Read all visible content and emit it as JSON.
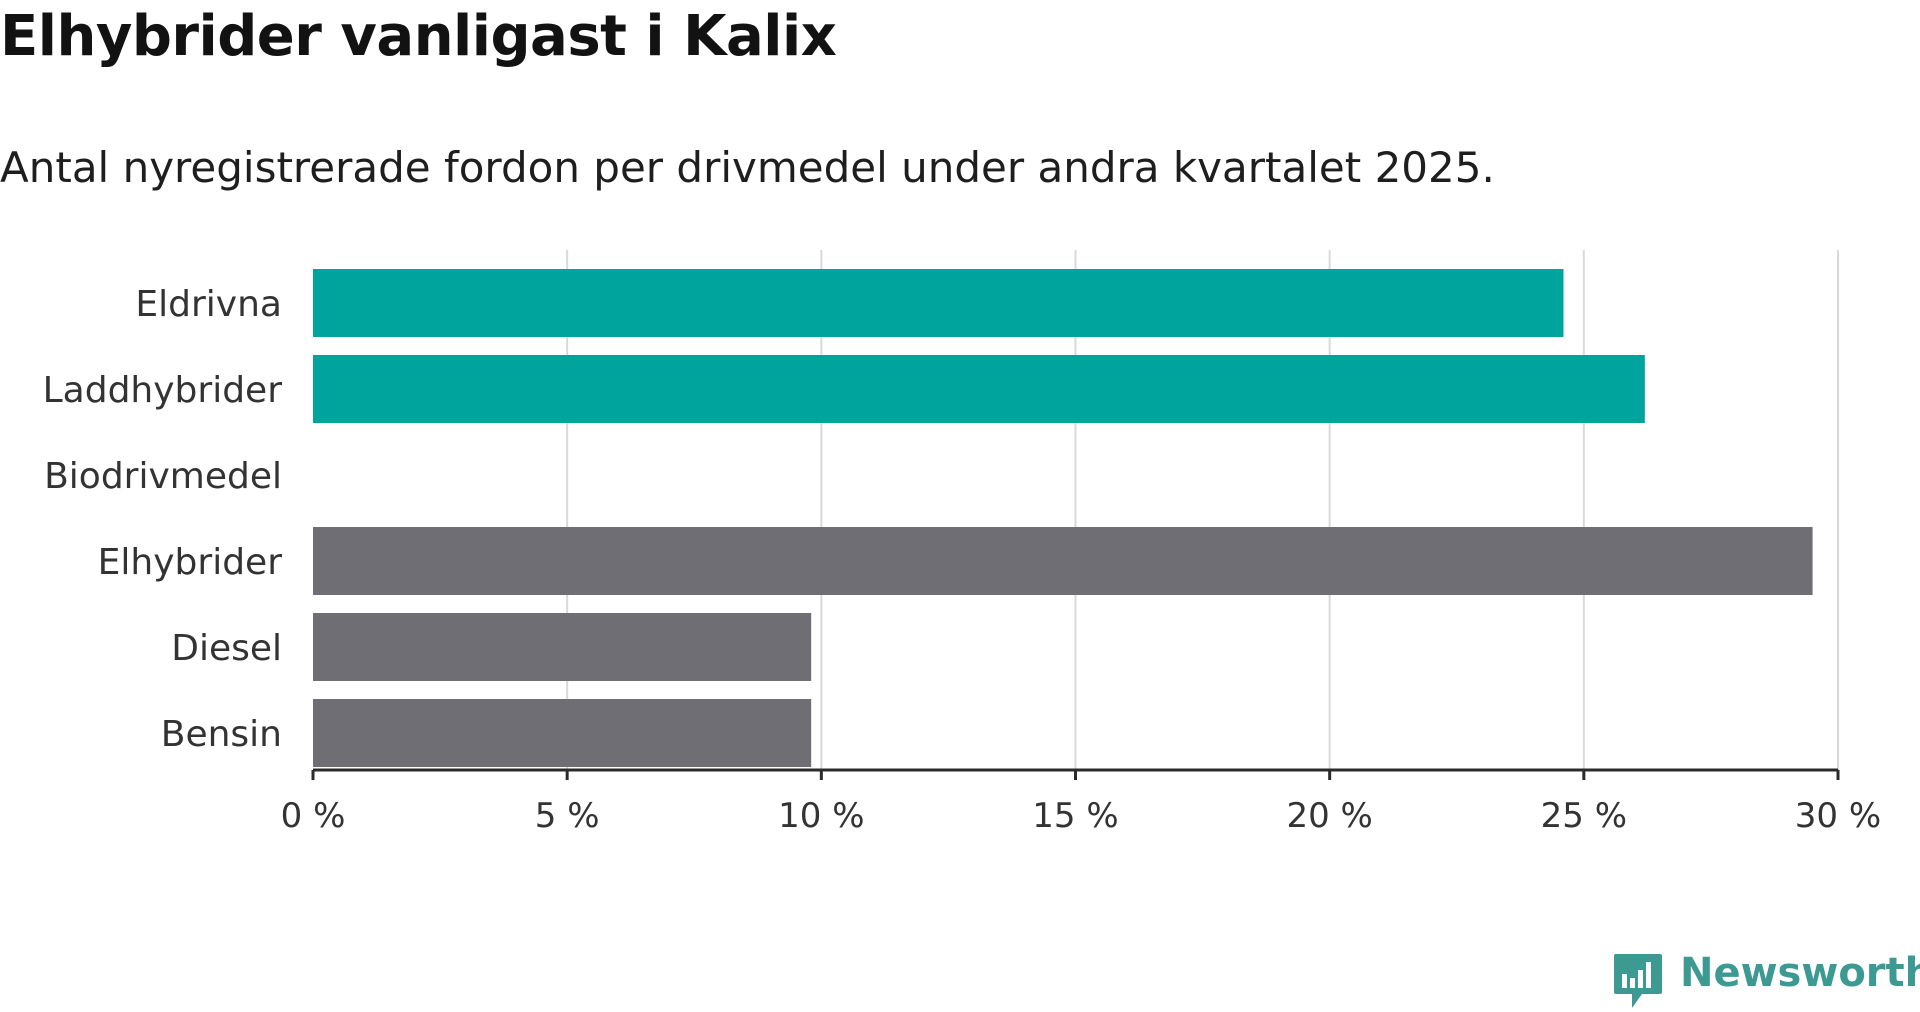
{
  "header": {
    "title": "Elhybrider vanligast i Kalix",
    "subtitle": "Antal nyregistrerade fordon per drivmedel under andra kvartalet 2025."
  },
  "branding": {
    "logo_text": "Newsworthy",
    "logo_color": "#3c9a93",
    "logo_icon": "bar-chart-speech-bubble-icon"
  },
  "chart_data": {
    "type": "bar",
    "orientation": "horizontal",
    "categories": [
      "Eldrivna",
      "Laddhybrider",
      "Biodrivmedel",
      "Elhybrider",
      "Diesel",
      "Bensin"
    ],
    "values": [
      24.6,
      26.2,
      0,
      29.5,
      9.8,
      9.8
    ],
    "colors": [
      "#00a49c",
      "#00a49c",
      "#00a49c",
      "#6f6e74",
      "#6f6e74",
      "#6f6e74"
    ],
    "xlim": [
      0,
      30
    ],
    "x_ticks": [
      0,
      5,
      10,
      15,
      20,
      25,
      30
    ],
    "x_tick_labels": [
      "0 %",
      "5 %",
      "10 %",
      "15 %",
      "20 %",
      "25 %",
      "30 %"
    ],
    "grid": true,
    "grid_color": "#d9d9d9",
    "axis_color": "#2b2b2b"
  }
}
